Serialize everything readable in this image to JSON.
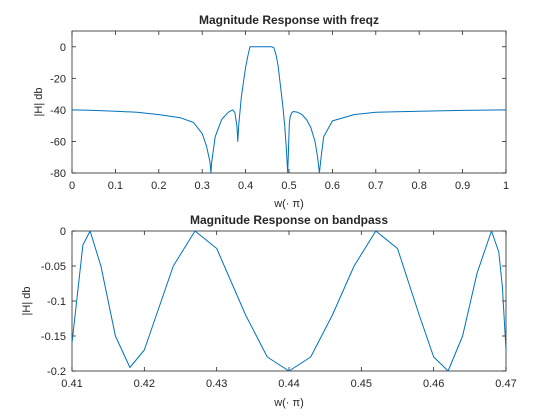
{
  "chart_data": [
    {
      "type": "line",
      "title": "Magnitude Response with freqz",
      "xlabel": "w(· π)",
      "ylabel": "|H| db",
      "xlim": [
        0,
        1
      ],
      "ylim": [
        -80,
        10
      ],
      "xticks": [
        "0",
        "0.1",
        "0.2",
        "0.3",
        "0.4",
        "0.5",
        "0.6",
        "0.7",
        "0.8",
        "0.9",
        "1"
      ],
      "yticks": [
        "-80",
        "-60",
        "-40",
        "-20",
        "0"
      ],
      "grid": false,
      "color": "#0072BD",
      "series": [
        {
          "x": [
            0,
            0.05,
            0.1,
            0.15,
            0.2,
            0.25,
            0.28,
            0.3,
            0.31,
            0.318,
            0.32,
            0.322,
            0.33,
            0.345,
            0.36,
            0.37,
            0.375,
            0.38,
            0.382,
            0.384,
            0.39,
            0.4,
            0.405,
            0.41,
            0.42,
            0.43,
            0.44,
            0.45,
            0.46,
            0.465,
            0.47,
            0.475,
            0.48,
            0.486,
            0.49,
            0.494,
            0.497,
            0.499,
            0.5,
            0.501,
            0.503,
            0.506,
            0.51,
            0.52,
            0.53,
            0.54,
            0.55,
            0.56,
            0.566,
            0.57,
            0.574,
            0.58,
            0.6,
            0.65,
            0.7,
            0.8,
            0.9,
            1.0
          ],
          "y": [
            -40,
            -40.3,
            -40.8,
            -41.5,
            -43,
            -45,
            -48,
            -55,
            -63,
            -73,
            -80,
            -73,
            -57,
            -46,
            -41.5,
            -40,
            -41.5,
            -50,
            -60,
            -50,
            -32,
            -13,
            -6,
            0,
            0,
            0,
            0,
            0,
            0,
            -0.5,
            -5,
            -12,
            -24,
            -38,
            -50,
            -65,
            -80,
            -63,
            -55,
            -48,
            -44,
            -42,
            -41,
            -41.5,
            -43,
            -46,
            -51,
            -60,
            -70,
            -80,
            -70,
            -57,
            -47,
            -43,
            -41.5,
            -40.8,
            -40.3,
            -40
          ]
        }
      ]
    },
    {
      "type": "line",
      "title": "Magnitude Response on bandpass",
      "xlabel": "w(· π)",
      "ylabel": "|H| db",
      "xlim": [
        0.41,
        0.47
      ],
      "ylim": [
        -0.2,
        0
      ],
      "xticks": [
        "0.41",
        "0.42",
        "0.43",
        "0.44",
        "0.45",
        "0.46",
        "0.47"
      ],
      "yticks": [
        "-0.2",
        "-0.15",
        "-0.1",
        "-0.05",
        "0"
      ],
      "grid": false,
      "color": "#0072BD",
      "series": [
        {
          "x": [
            0.41,
            0.4115,
            0.4125,
            0.414,
            0.416,
            0.418,
            0.42,
            0.424,
            0.427,
            0.43,
            0.434,
            0.437,
            0.44,
            0.443,
            0.446,
            0.449,
            0.452,
            0.455,
            0.458,
            0.46,
            0.462,
            0.464,
            0.466,
            0.468,
            0.469,
            0.4695,
            0.47
          ],
          "y": [
            -0.16,
            -0.02,
            0,
            -0.05,
            -0.15,
            -0.195,
            -0.17,
            -0.05,
            0,
            -0.025,
            -0.12,
            -0.18,
            -0.2,
            -0.18,
            -0.12,
            -0.05,
            0,
            -0.025,
            -0.12,
            -0.18,
            -0.2,
            -0.15,
            -0.06,
            0,
            -0.03,
            -0.08,
            -0.17
          ]
        }
      ]
    }
  ]
}
